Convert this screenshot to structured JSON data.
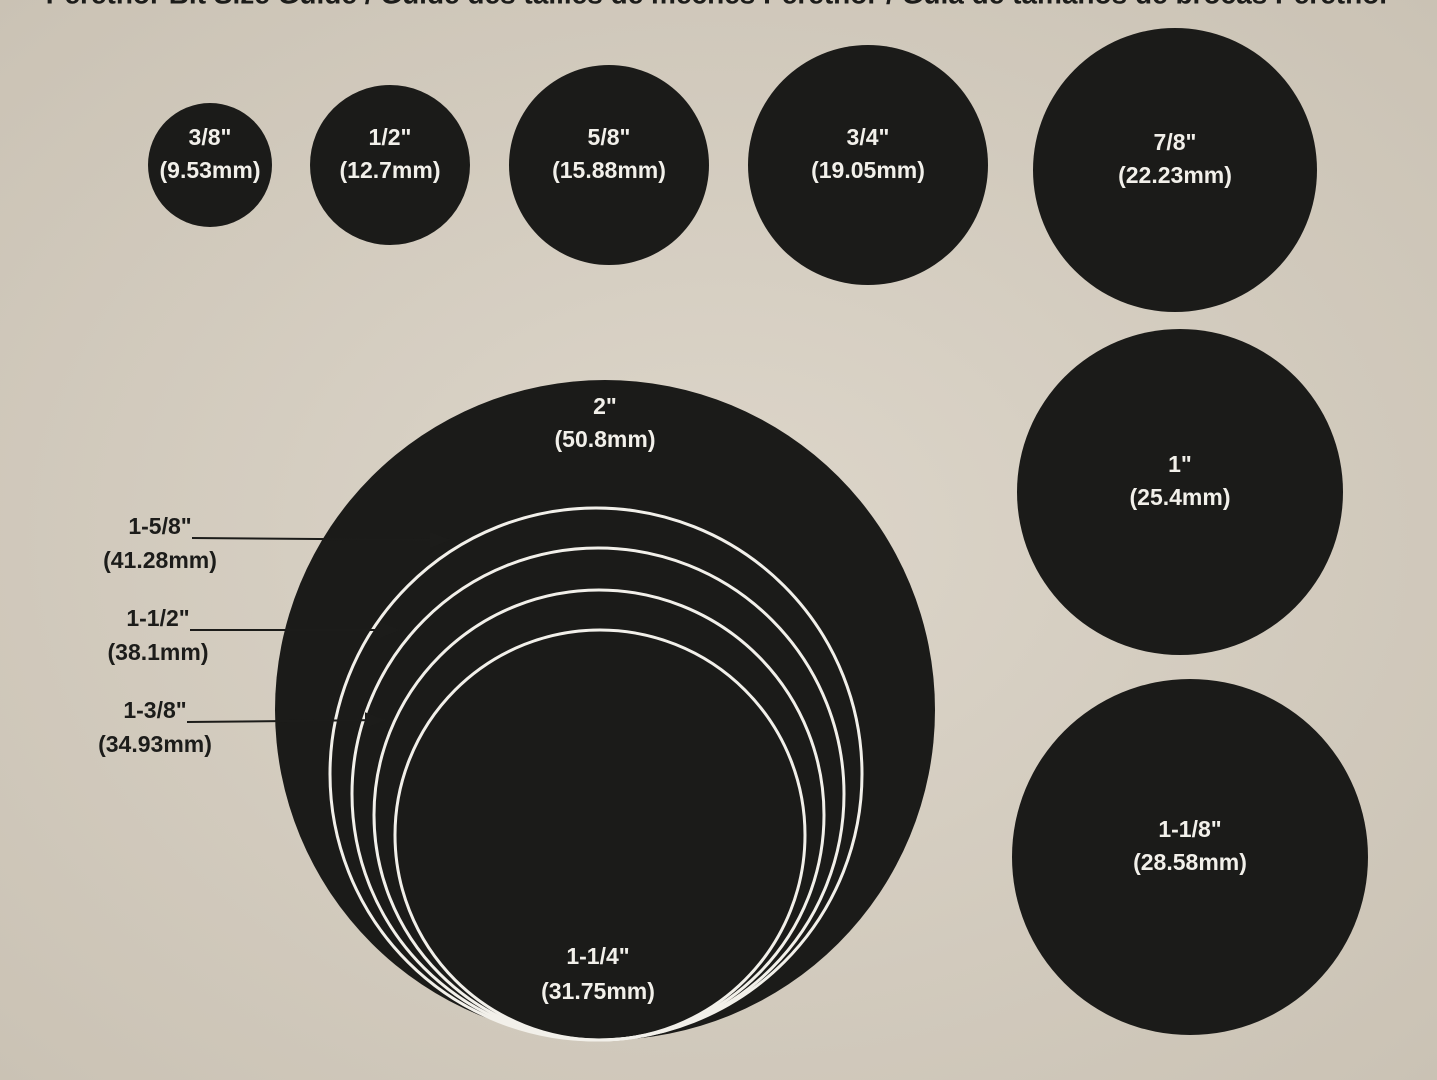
{
  "header": {
    "title": "Perethor Bit Size Guide / Guide des tailles de mèches Perethor / Guía de tamaños de brocas Perethor"
  },
  "circles": [
    {
      "size": "3/8\"",
      "metric": "(9.53mm)"
    },
    {
      "size": "1/2\"",
      "metric": "(12.7mm)"
    },
    {
      "size": "5/8\"",
      "metric": "(15.88mm)"
    },
    {
      "size": "3/4\"",
      "metric": "(19.05mm)"
    },
    {
      "size": "7/8\"",
      "metric": "(22.23mm)"
    },
    {
      "size": "1\"",
      "metric": "(25.4mm)"
    },
    {
      "size": "1-1/8\"",
      "metric": "(28.58mm)"
    }
  ],
  "nested": {
    "outer": {
      "size": "2\"",
      "metric": "(50.8mm)"
    },
    "inner": {
      "size": "1-1/4\"",
      "metric": "(31.75mm)"
    },
    "rings": [
      {
        "size": "1-5/8\"",
        "metric": "(41.28mm)"
      },
      {
        "size": "1-1/2\"",
        "metric": "(38.1mm)"
      },
      {
        "size": "1-3/8\"",
        "metric": "(34.93mm)"
      }
    ]
  }
}
